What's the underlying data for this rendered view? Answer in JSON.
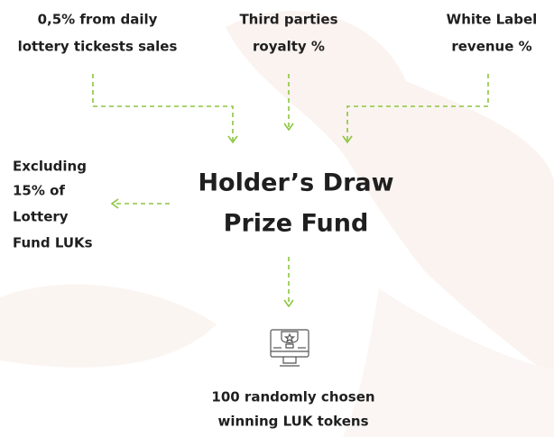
{
  "sources": [
    {
      "lines": [
        "0,5% from daily",
        "lottery tickests sales"
      ]
    },
    {
      "lines": [
        "Third parties",
        "royalty %"
      ]
    },
    {
      "lines": [
        "White Label",
        "revenue %"
      ]
    }
  ],
  "exclusion": {
    "lines": [
      "Excluding",
      "15% of",
      "Lottery",
      "Fund LUKs"
    ]
  },
  "center": {
    "lines": [
      "Holder’s Draw",
      "Prize Fund"
    ]
  },
  "result": {
    "lines": [
      "100 randomly chosen",
      "winning LUK tokens"
    ]
  }
}
